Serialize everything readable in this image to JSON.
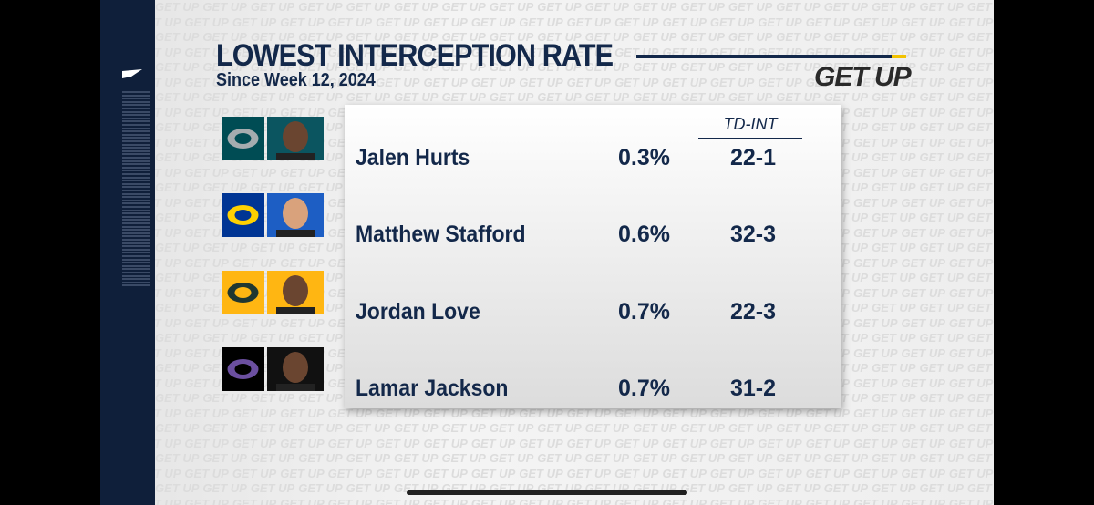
{
  "header": {
    "title": "LOWEST INTERCEPTION RATE",
    "subtitle": "Since Week 12, 2024",
    "brand": "GET UP"
  },
  "table": {
    "column_header": "TD-INT",
    "rows": [
      {
        "name": "Jalen Hurts",
        "rate": "0.3%",
        "td_int": "22-1"
      },
      {
        "name": "Matthew Stafford",
        "rate": "0.6%",
        "td_int": "32-3"
      },
      {
        "name": "Jordan Love",
        "rate": "0.7%",
        "td_int": "22-3"
      },
      {
        "name": "Lamar Jackson",
        "rate": "0.7%",
        "td_int": "31-2"
      }
    ]
  }
}
